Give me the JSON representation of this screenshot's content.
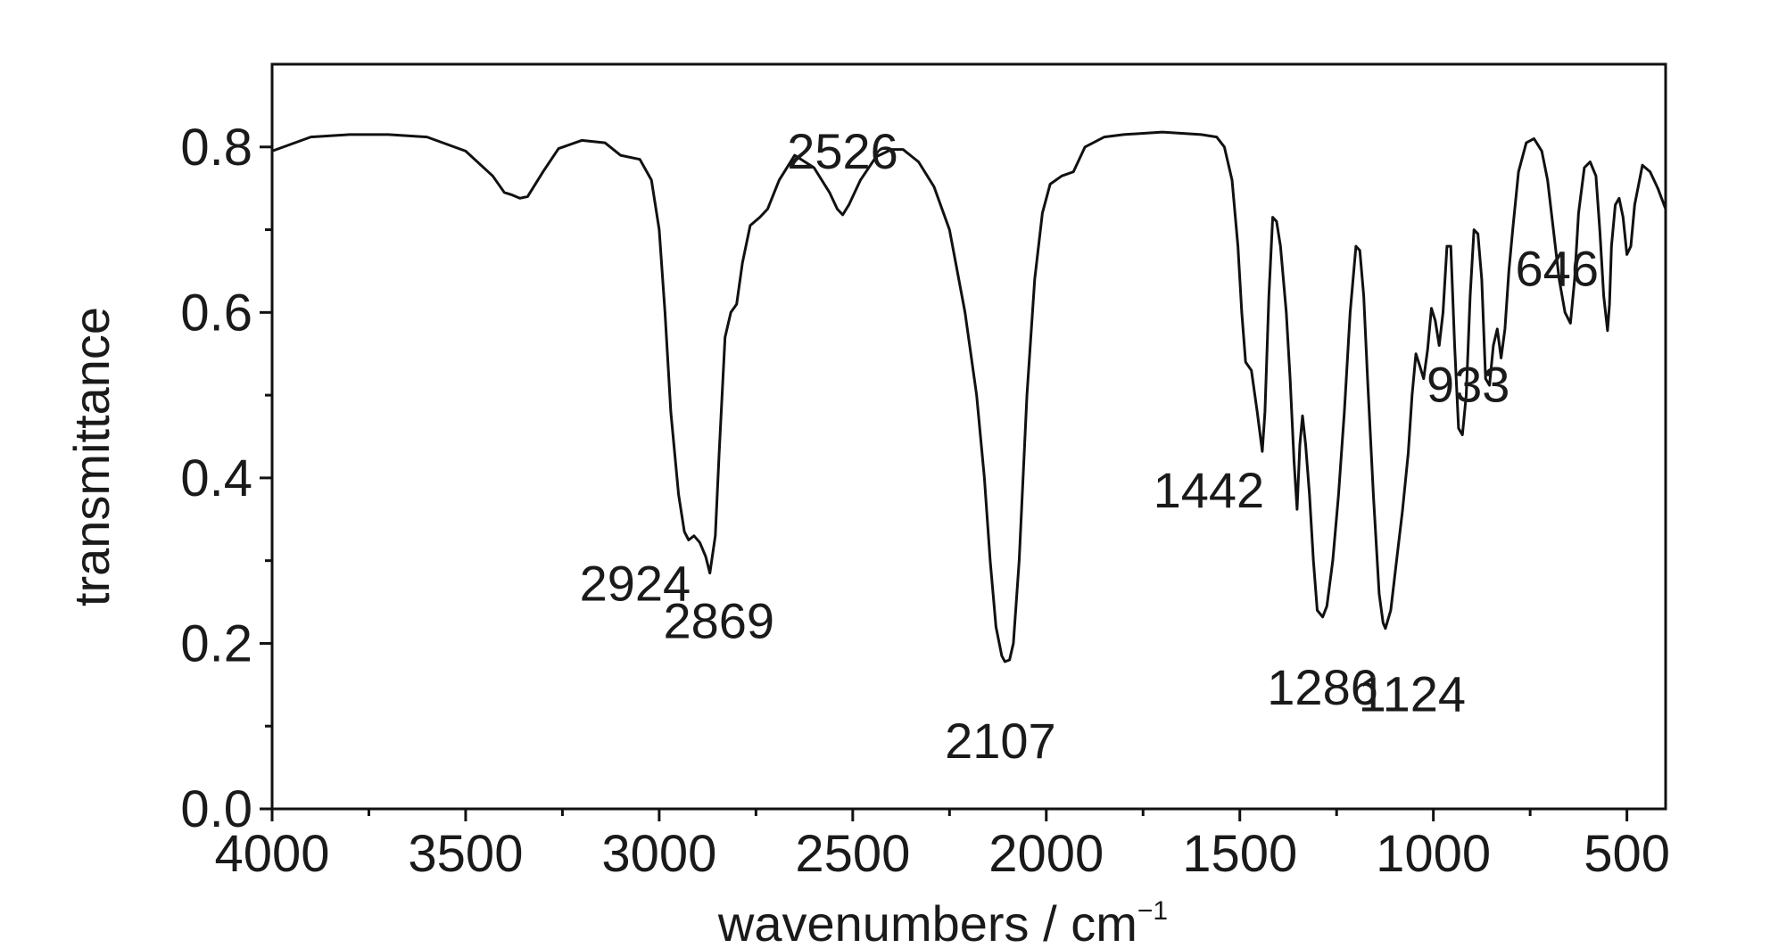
{
  "chart_data": {
    "type": "line",
    "xlabel": "wavenumbers / cm",
    "xlabel_superscript": "−1",
    "ylabel": "transmittance",
    "xlim": [
      4000,
      400
    ],
    "ylim": [
      0,
      0.9
    ],
    "x_reversed": true,
    "grid": false,
    "x_ticks": [
      {
        "value": 4000,
        "label": "4000"
      },
      {
        "value": 3500,
        "label": "3500"
      },
      {
        "value": 3000,
        "label": "3000"
      },
      {
        "value": 2500,
        "label": "2500"
      },
      {
        "value": 2000,
        "label": "2000"
      },
      {
        "value": 1500,
        "label": "1500"
      },
      {
        "value": 1000,
        "label": "1000"
      },
      {
        "value": 500,
        "label": "500"
      }
    ],
    "y_ticks": [
      {
        "value": 0.0,
        "label": "0.0"
      },
      {
        "value": 0.2,
        "label": "0.2"
      },
      {
        "value": 0.4,
        "label": "0.4"
      },
      {
        "value": 0.6,
        "label": "0.6"
      },
      {
        "value": 0.8,
        "label": "0.8"
      }
    ],
    "series": [
      {
        "color": "#111111",
        "points": [
          [
            4000,
            0.795
          ],
          [
            3900,
            0.812
          ],
          [
            3800,
            0.815
          ],
          [
            3700,
            0.815
          ],
          [
            3600,
            0.812
          ],
          [
            3500,
            0.795
          ],
          [
            3430,
            0.765
          ],
          [
            3400,
            0.745
          ],
          [
            3380,
            0.742
          ],
          [
            3360,
            0.738
          ],
          [
            3340,
            0.74
          ],
          [
            3300,
            0.77
          ],
          [
            3260,
            0.798
          ],
          [
            3200,
            0.808
          ],
          [
            3140,
            0.805
          ],
          [
            3100,
            0.79
          ],
          [
            3050,
            0.785
          ],
          [
            3020,
            0.76
          ],
          [
            3000,
            0.7
          ],
          [
            2985,
            0.6
          ],
          [
            2970,
            0.48
          ],
          [
            2950,
            0.38
          ],
          [
            2935,
            0.335
          ],
          [
            2924,
            0.325
          ],
          [
            2910,
            0.33
          ],
          [
            2895,
            0.322
          ],
          [
            2880,
            0.305
          ],
          [
            2869,
            0.285
          ],
          [
            2855,
            0.33
          ],
          [
            2845,
            0.43
          ],
          [
            2830,
            0.57
          ],
          [
            2815,
            0.6
          ],
          [
            2800,
            0.61
          ],
          [
            2785,
            0.66
          ],
          [
            2765,
            0.705
          ],
          [
            2740,
            0.715
          ],
          [
            2720,
            0.725
          ],
          [
            2690,
            0.76
          ],
          [
            2650,
            0.79
          ],
          [
            2600,
            0.775
          ],
          [
            2560,
            0.745
          ],
          [
            2540,
            0.725
          ],
          [
            2526,
            0.718
          ],
          [
            2510,
            0.73
          ],
          [
            2480,
            0.76
          ],
          [
            2440,
            0.788
          ],
          [
            2400,
            0.797
          ],
          [
            2370,
            0.797
          ],
          [
            2330,
            0.782
          ],
          [
            2290,
            0.752
          ],
          [
            2250,
            0.7
          ],
          [
            2210,
            0.6
          ],
          [
            2180,
            0.5
          ],
          [
            2160,
            0.4
          ],
          [
            2145,
            0.3
          ],
          [
            2130,
            0.22
          ],
          [
            2115,
            0.185
          ],
          [
            2107,
            0.178
          ],
          [
            2095,
            0.18
          ],
          [
            2085,
            0.2
          ],
          [
            2070,
            0.3
          ],
          [
            2050,
            0.5
          ],
          [
            2030,
            0.64
          ],
          [
            2010,
            0.72
          ],
          [
            1990,
            0.755
          ],
          [
            1960,
            0.765
          ],
          [
            1930,
            0.77
          ],
          [
            1900,
            0.8
          ],
          [
            1850,
            0.812
          ],
          [
            1800,
            0.815
          ],
          [
            1700,
            0.818
          ],
          [
            1600,
            0.815
          ],
          [
            1560,
            0.812
          ],
          [
            1540,
            0.8
          ],
          [
            1520,
            0.76
          ],
          [
            1505,
            0.68
          ],
          [
            1495,
            0.6
          ],
          [
            1485,
            0.54
          ],
          [
            1470,
            0.53
          ],
          [
            1455,
            0.48
          ],
          [
            1442,
            0.432
          ],
          [
            1435,
            0.48
          ],
          [
            1425,
            0.62
          ],
          [
            1415,
            0.715
          ],
          [
            1405,
            0.71
          ],
          [
            1395,
            0.68
          ],
          [
            1380,
            0.6
          ],
          [
            1370,
            0.52
          ],
          [
            1360,
            0.42
          ],
          [
            1352,
            0.362
          ],
          [
            1345,
            0.44
          ],
          [
            1338,
            0.475
          ],
          [
            1330,
            0.44
          ],
          [
            1320,
            0.38
          ],
          [
            1310,
            0.3
          ],
          [
            1300,
            0.24
          ],
          [
            1286,
            0.232
          ],
          [
            1275,
            0.245
          ],
          [
            1260,
            0.3
          ],
          [
            1245,
            0.38
          ],
          [
            1230,
            0.48
          ],
          [
            1215,
            0.6
          ],
          [
            1200,
            0.68
          ],
          [
            1190,
            0.675
          ],
          [
            1180,
            0.62
          ],
          [
            1170,
            0.52
          ],
          [
            1155,
            0.38
          ],
          [
            1140,
            0.26
          ],
          [
            1130,
            0.225
          ],
          [
            1124,
            0.218
          ],
          [
            1110,
            0.24
          ],
          [
            1095,
            0.3
          ],
          [
            1080,
            0.36
          ],
          [
            1065,
            0.43
          ],
          [
            1055,
            0.5
          ],
          [
            1045,
            0.55
          ],
          [
            1035,
            0.535
          ],
          [
            1025,
            0.52
          ],
          [
            1015,
            0.555
          ],
          [
            1005,
            0.605
          ],
          [
            995,
            0.59
          ],
          [
            985,
            0.56
          ],
          [
            975,
            0.6
          ],
          [
            965,
            0.68
          ],
          [
            955,
            0.68
          ],
          [
            945,
            0.56
          ],
          [
            935,
            0.46
          ],
          [
            925,
            0.452
          ],
          [
            915,
            0.5
          ],
          [
            905,
            0.62
          ],
          [
            895,
            0.7
          ],
          [
            885,
            0.695
          ],
          [
            875,
            0.64
          ],
          [
            865,
            0.52
          ],
          [
            855,
            0.512
          ],
          [
            845,
            0.56
          ],
          [
            835,
            0.58
          ],
          [
            825,
            0.545
          ],
          [
            815,
            0.58
          ],
          [
            805,
            0.65
          ],
          [
            795,
            0.7
          ],
          [
            780,
            0.77
          ],
          [
            760,
            0.805
          ],
          [
            740,
            0.81
          ],
          [
            720,
            0.795
          ],
          [
            705,
            0.76
          ],
          [
            690,
            0.7
          ],
          [
            675,
            0.64
          ],
          [
            660,
            0.6
          ],
          [
            646,
            0.587
          ],
          [
            635,
            0.64
          ],
          [
            625,
            0.72
          ],
          [
            610,
            0.775
          ],
          [
            595,
            0.782
          ],
          [
            580,
            0.765
          ],
          [
            570,
            0.7
          ],
          [
            560,
            0.62
          ],
          [
            550,
            0.578
          ],
          [
            545,
            0.61
          ],
          [
            540,
            0.68
          ],
          [
            530,
            0.73
          ],
          [
            520,
            0.738
          ],
          [
            510,
            0.715
          ],
          [
            500,
            0.67
          ],
          [
            490,
            0.68
          ],
          [
            480,
            0.73
          ],
          [
            460,
            0.778
          ],
          [
            440,
            0.77
          ],
          [
            420,
            0.75
          ],
          [
            400,
            0.725
          ]
        ]
      }
    ],
    "annotations": [
      {
        "text": "2526",
        "x": 2526,
        "y": 0.718
      },
      {
        "text": "2924",
        "x": 2924,
        "y": 0.325
      },
      {
        "text": "2869",
        "x": 2869,
        "y": 0.285
      },
      {
        "text": "2107",
        "x": 2107,
        "y": 0.178
      },
      {
        "text": "1442",
        "x": 1442,
        "y": 0.432
      },
      {
        "text": "1286",
        "x": 1286,
        "y": 0.232
      },
      {
        "text": "1124",
        "x": 1124,
        "y": 0.218
      },
      {
        "text": "933",
        "x": 933,
        "y": 0.452
      },
      {
        "text": "646",
        "x": 646,
        "y": 0.587
      }
    ]
  }
}
